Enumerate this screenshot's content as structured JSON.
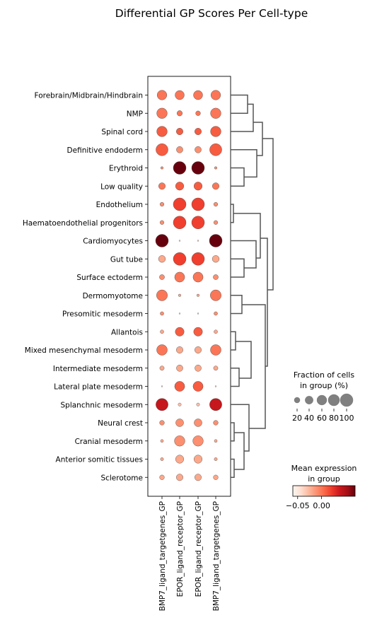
{
  "chart_data": {
    "type": "dotplot",
    "title": "Differential GP Scores Per Cell-type",
    "rows": [
      "Forebrain/Midbrain/Hindbrain",
      "NMP",
      "Spinal cord",
      "Definitive endoderm",
      "Erythroid",
      "Low quality",
      "Endothelium",
      "Haematoendothelial progenitors",
      "Cardiomyocytes",
      "Gut tube",
      "Surface ectoderm",
      "Dermomyotome",
      "Presomitic mesoderm",
      "Allantois",
      "Mixed mesenchymal mesoderm",
      "Intermediate mesoderm",
      "Lateral plate mesoderm",
      "Splanchnic mesoderm",
      "Neural crest",
      "Cranial mesoderm",
      "Anterior somitic tissues",
      "Sclerotome"
    ],
    "columns": [
      "BMP7_ligand_targetgenes_GP",
      "EPOR_ligand_receptor_GP",
      "EPOR_ligand_receptor_GP",
      "BMP7_ligand_targetgenes_GP"
    ],
    "fraction_pct": [
      [
        58,
        52,
        52,
        58
      ],
      [
        68,
        18,
        14,
        68
      ],
      [
        68,
        28,
        28,
        68
      ],
      [
        90,
        26,
        26,
        90
      ],
      [
        4,
        100,
        100,
        4
      ],
      [
        28,
        42,
        42,
        28
      ],
      [
        10,
        100,
        100,
        10
      ],
      [
        10,
        100,
        100,
        10
      ],
      [
        100,
        1,
        1,
        100
      ],
      [
        30,
        100,
        100,
        30
      ],
      [
        16,
        62,
        62,
        16
      ],
      [
        74,
        4,
        4,
        74
      ],
      [
        8,
        1,
        1,
        8
      ],
      [
        8,
        48,
        48,
        8
      ],
      [
        70,
        28,
        28,
        70
      ],
      [
        12,
        26,
        26,
        12
      ],
      [
        1,
        62,
        62,
        1
      ],
      [
        92,
        6,
        6,
        92
      ],
      [
        14,
        38,
        38,
        14
      ],
      [
        5,
        68,
        68,
        5
      ],
      [
        6,
        42,
        42,
        6
      ],
      [
        14,
        28,
        28,
        14
      ]
    ],
    "mean_expression": [
      [
        0.0,
        0.0,
        0.0,
        0.0
      ],
      [
        0.0,
        0.0,
        0.0,
        0.0
      ],
      [
        0.01,
        0.01,
        0.01,
        0.01
      ],
      [
        0.01,
        -0.01,
        -0.01,
        0.01
      ],
      [
        -0.01,
        0.07,
        0.07,
        -0.01
      ],
      [
        0.0,
        0.01,
        0.01,
        0.0
      ],
      [
        -0.01,
        0.02,
        0.02,
        -0.01
      ],
      [
        -0.01,
        0.02,
        0.02,
        -0.01
      ],
      [
        0.07,
        -0.05,
        -0.05,
        0.07
      ],
      [
        -0.02,
        0.02,
        0.02,
        -0.02
      ],
      [
        -0.01,
        0.0,
        0.0,
        -0.01
      ],
      [
        0.0,
        -0.02,
        -0.02,
        0.0
      ],
      [
        -0.01,
        -0.05,
        -0.05,
        -0.01
      ],
      [
        -0.02,
        0.01,
        0.01,
        -0.02
      ],
      [
        0.0,
        -0.02,
        -0.02,
        0.0
      ],
      [
        -0.02,
        -0.02,
        -0.02,
        -0.02
      ],
      [
        -0.05,
        0.01,
        0.01,
        -0.05
      ],
      [
        0.04,
        -0.03,
        -0.03,
        0.04
      ],
      [
        -0.01,
        -0.01,
        -0.01,
        -0.01
      ],
      [
        -0.02,
        -0.01,
        -0.01,
        -0.02
      ],
      [
        -0.02,
        -0.02,
        -0.02,
        -0.02
      ],
      [
        -0.02,
        -0.02,
        -0.02,
        -0.02
      ]
    ],
    "size_legend": {
      "title_line1": "Fraction of cells",
      "title_line2": "in group (%)",
      "values": [
        20,
        40,
        60,
        80,
        100
      ],
      "labels": [
        "20",
        "40",
        "60",
        "80",
        "100"
      ]
    },
    "color_legend": {
      "title_line1": "Mean expression",
      "title_line2": "in group",
      "colormap": "Reds",
      "range": [
        -0.06,
        0.07
      ],
      "ticks": [
        -0.05,
        0.0
      ],
      "tick_labels": [
        "−0.05",
        "0.00"
      ]
    },
    "dendrogram": "hierarchical clustering of cell types shown right of the dot plot",
    "colors": {
      "dot_edge": "#444444",
      "dendrogram": "#555555",
      "size_legend_dot": "#808080"
    }
  }
}
